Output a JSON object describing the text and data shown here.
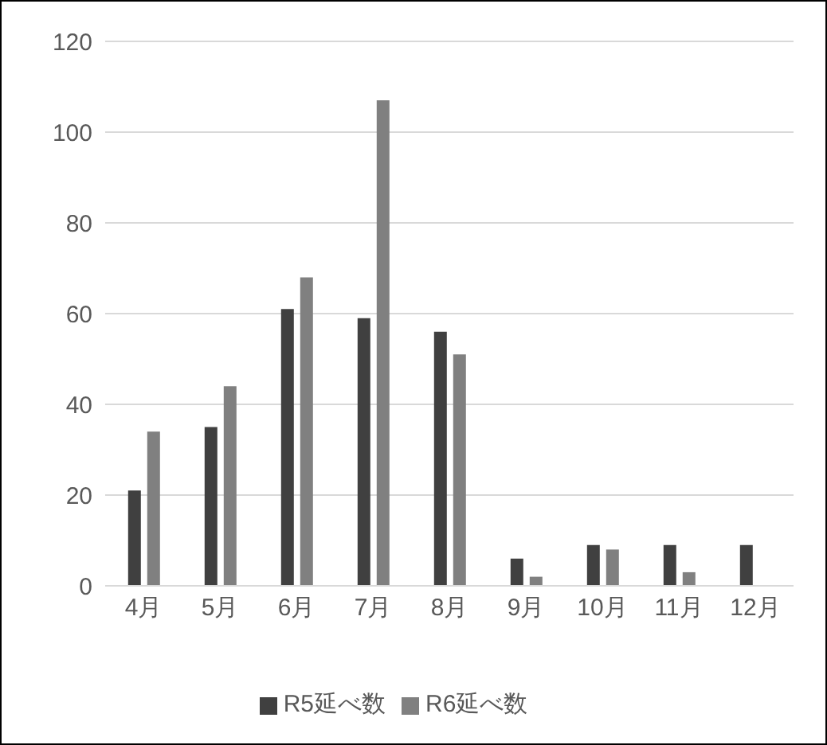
{
  "chart_data": {
    "type": "bar",
    "categories": [
      "4月",
      "5月",
      "6月",
      "7月",
      "8月",
      "9月",
      "10月",
      "11月",
      "12月"
    ],
    "series": [
      {
        "name": "R5延べ数",
        "color": "#404040",
        "values": [
          21,
          35,
          61,
          59,
          56,
          6,
          9,
          9,
          9
        ]
      },
      {
        "name": "R6延べ数",
        "color": "#808080",
        "values": [
          34,
          44,
          68,
          107,
          51,
          2,
          8,
          3,
          null
        ]
      }
    ],
    "ylim": [
      0,
      120
    ],
    "yticks": [
      0,
      20,
      40,
      60,
      80,
      100,
      120
    ],
    "grid": "y",
    "legend": "bottom"
  }
}
